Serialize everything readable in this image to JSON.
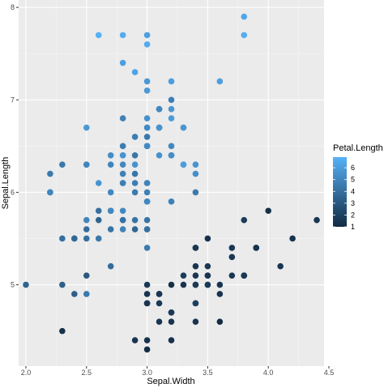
{
  "chart_data": {
    "type": "scatter",
    "title": "",
    "xlabel": "Sepal.Width",
    "ylabel": "Sepal.Length",
    "xlim": [
      1.94,
      4.46
    ],
    "ylim": [
      4.12,
      8.08
    ],
    "xticks": [
      2.0,
      2.5,
      3.0,
      3.5,
      4.0,
      4.5
    ],
    "xtick_labels": [
      "2.0",
      "2.5",
      "3.0",
      "3.5",
      "4.0",
      "4.5"
    ],
    "yticks": [
      5,
      6,
      7,
      8
    ],
    "ytick_labels": [
      "5",
      "6",
      "7",
      "8"
    ],
    "grid": true,
    "legend": {
      "title": "Petal.Length",
      "placement": "right",
      "breaks": [
        6,
        5,
        4,
        3,
        2,
        1
      ],
      "labels": [
        "6",
        "5",
        "4",
        "3",
        "2",
        "1"
      ],
      "range": [
        1,
        6.9
      ]
    },
    "color_scale": {
      "low": "#132B43",
      "high": "#56B1F7"
    },
    "points": [
      {
        "x": 3.5,
        "y": 5.1,
        "c": 1.4
      },
      {
        "x": 3.0,
        "y": 4.9,
        "c": 1.4
      },
      {
        "x": 3.2,
        "y": 4.7,
        "c": 1.3
      },
      {
        "x": 3.1,
        "y": 4.6,
        "c": 1.5
      },
      {
        "x": 3.6,
        "y": 5.0,
        "c": 1.4
      },
      {
        "x": 3.9,
        "y": 5.4,
        "c": 1.7
      },
      {
        "x": 3.4,
        "y": 4.6,
        "c": 1.4
      },
      {
        "x": 3.4,
        "y": 5.0,
        "c": 1.5
      },
      {
        "x": 2.9,
        "y": 4.4,
        "c": 1.4
      },
      {
        "x": 3.1,
        "y": 4.9,
        "c": 1.5
      },
      {
        "x": 3.7,
        "y": 5.4,
        "c": 1.5
      },
      {
        "x": 3.4,
        "y": 4.8,
        "c": 1.6
      },
      {
        "x": 3.0,
        "y": 4.8,
        "c": 1.4
      },
      {
        "x": 3.0,
        "y": 4.3,
        "c": 1.1
      },
      {
        "x": 4.0,
        "y": 5.8,
        "c": 1.2
      },
      {
        "x": 4.4,
        "y": 5.7,
        "c": 1.5
      },
      {
        "x": 3.9,
        "y": 5.4,
        "c": 1.3
      },
      {
        "x": 3.5,
        "y": 5.1,
        "c": 1.4
      },
      {
        "x": 3.8,
        "y": 5.7,
        "c": 1.7
      },
      {
        "x": 3.8,
        "y": 5.1,
        "c": 1.5
      },
      {
        "x": 3.4,
        "y": 5.4,
        "c": 1.7
      },
      {
        "x": 3.7,
        "y": 5.1,
        "c": 1.5
      },
      {
        "x": 3.6,
        "y": 4.6,
        "c": 1.0
      },
      {
        "x": 3.3,
        "y": 5.1,
        "c": 1.7
      },
      {
        "x": 3.4,
        "y": 4.8,
        "c": 1.9
      },
      {
        "x": 3.0,
        "y": 5.0,
        "c": 1.6
      },
      {
        "x": 3.4,
        "y": 5.0,
        "c": 1.6
      },
      {
        "x": 3.5,
        "y": 5.2,
        "c": 1.5
      },
      {
        "x": 3.4,
        "y": 5.2,
        "c": 1.4
      },
      {
        "x": 3.2,
        "y": 4.7,
        "c": 1.6
      },
      {
        "x": 3.1,
        "y": 4.8,
        "c": 1.6
      },
      {
        "x": 3.4,
        "y": 5.4,
        "c": 1.5
      },
      {
        "x": 4.1,
        "y": 5.2,
        "c": 1.5
      },
      {
        "x": 4.2,
        "y": 5.5,
        "c": 1.4
      },
      {
        "x": 3.1,
        "y": 4.9,
        "c": 1.5
      },
      {
        "x": 3.2,
        "y": 5.0,
        "c": 1.2
      },
      {
        "x": 3.5,
        "y": 5.5,
        "c": 1.3
      },
      {
        "x": 3.6,
        "y": 4.9,
        "c": 1.4
      },
      {
        "x": 3.0,
        "y": 4.4,
        "c": 1.3
      },
      {
        "x": 3.4,
        "y": 5.1,
        "c": 1.5
      },
      {
        "x": 3.5,
        "y": 5.0,
        "c": 1.3
      },
      {
        "x": 2.3,
        "y": 4.5,
        "c": 1.3
      },
      {
        "x": 3.2,
        "y": 4.4,
        "c": 1.3
      },
      {
        "x": 3.5,
        "y": 5.0,
        "c": 1.6
      },
      {
        "x": 3.8,
        "y": 5.1,
        "c": 1.9
      },
      {
        "x": 3.0,
        "y": 4.8,
        "c": 1.4
      },
      {
        "x": 3.8,
        "y": 5.1,
        "c": 1.6
      },
      {
        "x": 3.2,
        "y": 4.6,
        "c": 1.4
      },
      {
        "x": 3.7,
        "y": 5.3,
        "c": 1.5
      },
      {
        "x": 3.3,
        "y": 5.0,
        "c": 1.4
      },
      {
        "x": 3.2,
        "y": 7.0,
        "c": 4.7
      },
      {
        "x": 3.2,
        "y": 6.4,
        "c": 4.5
      },
      {
        "x": 3.1,
        "y": 6.9,
        "c": 4.9
      },
      {
        "x": 2.3,
        "y": 5.5,
        "c": 4.0
      },
      {
        "x": 2.8,
        "y": 6.5,
        "c": 4.6
      },
      {
        "x": 2.8,
        "y": 5.7,
        "c": 4.5
      },
      {
        "x": 3.3,
        "y": 6.3,
        "c": 4.7
      },
      {
        "x": 2.4,
        "y": 4.9,
        "c": 3.3
      },
      {
        "x": 2.9,
        "y": 6.6,
        "c": 4.6
      },
      {
        "x": 2.7,
        "y": 5.2,
        "c": 3.9
      },
      {
        "x": 2.0,
        "y": 5.0,
        "c": 3.5
      },
      {
        "x": 3.0,
        "y": 5.9,
        "c": 4.2
      },
      {
        "x": 2.2,
        "y": 6.0,
        "c": 4.0
      },
      {
        "x": 2.9,
        "y": 6.1,
        "c": 4.7
      },
      {
        "x": 2.9,
        "y": 5.6,
        "c": 3.6
      },
      {
        "x": 3.1,
        "y": 6.7,
        "c": 4.4
      },
      {
        "x": 3.0,
        "y": 5.6,
        "c": 4.5
      },
      {
        "x": 2.7,
        "y": 5.8,
        "c": 4.1
      },
      {
        "x": 2.2,
        "y": 6.2,
        "c": 4.5
      },
      {
        "x": 2.5,
        "y": 5.6,
        "c": 3.9
      },
      {
        "x": 3.2,
        "y": 5.9,
        "c": 4.8
      },
      {
        "x": 2.8,
        "y": 6.1,
        "c": 4.0
      },
      {
        "x": 2.5,
        "y": 6.3,
        "c": 4.9
      },
      {
        "x": 2.8,
        "y": 6.1,
        "c": 4.7
      },
      {
        "x": 2.9,
        "y": 6.4,
        "c": 4.3
      },
      {
        "x": 3.0,
        "y": 6.6,
        "c": 4.4
      },
      {
        "x": 2.8,
        "y": 6.8,
        "c": 4.8
      },
      {
        "x": 3.0,
        "y": 6.7,
        "c": 5.0
      },
      {
        "x": 2.9,
        "y": 6.0,
        "c": 4.5
      },
      {
        "x": 2.6,
        "y": 5.7,
        "c": 3.5
      },
      {
        "x": 2.4,
        "y": 5.5,
        "c": 3.8
      },
      {
        "x": 2.4,
        "y": 5.5,
        "c": 3.7
      },
      {
        "x": 2.7,
        "y": 5.8,
        "c": 3.9
      },
      {
        "x": 2.7,
        "y": 6.0,
        "c": 5.1
      },
      {
        "x": 3.0,
        "y": 5.4,
        "c": 4.5
      },
      {
        "x": 3.4,
        "y": 6.0,
        "c": 4.5
      },
      {
        "x": 3.1,
        "y": 6.7,
        "c": 4.7
      },
      {
        "x": 2.3,
        "y": 6.3,
        "c": 4.4
      },
      {
        "x": 3.0,
        "y": 5.6,
        "c": 4.1
      },
      {
        "x": 2.5,
        "y": 5.5,
        "c": 4.0
      },
      {
        "x": 2.6,
        "y": 5.5,
        "c": 4.4
      },
      {
        "x": 3.0,
        "y": 6.1,
        "c": 4.6
      },
      {
        "x": 2.6,
        "y": 5.8,
        "c": 4.0
      },
      {
        "x": 2.3,
        "y": 5.0,
        "c": 3.3
      },
      {
        "x": 2.7,
        "y": 5.6,
        "c": 4.2
      },
      {
        "x": 3.0,
        "y": 5.7,
        "c": 4.2
      },
      {
        "x": 2.9,
        "y": 5.7,
        "c": 4.2
      },
      {
        "x": 2.9,
        "y": 6.2,
        "c": 4.3
      },
      {
        "x": 2.5,
        "y": 5.1,
        "c": 3.0
      },
      {
        "x": 2.8,
        "y": 5.7,
        "c": 4.1
      },
      {
        "x": 3.3,
        "y": 6.3,
        "c": 6.0
      },
      {
        "x": 2.7,
        "y": 5.8,
        "c": 5.1
      },
      {
        "x": 3.0,
        "y": 7.1,
        "c": 5.9
      },
      {
        "x": 2.9,
        "y": 6.3,
        "c": 5.6
      },
      {
        "x": 3.0,
        "y": 6.5,
        "c": 5.8
      },
      {
        "x": 3.0,
        "y": 7.6,
        "c": 6.6
      },
      {
        "x": 2.5,
        "y": 4.9,
        "c": 4.5
      },
      {
        "x": 2.9,
        "y": 7.3,
        "c": 6.3
      },
      {
        "x": 2.5,
        "y": 6.7,
        "c": 5.8
      },
      {
        "x": 3.6,
        "y": 7.2,
        "c": 6.1
      },
      {
        "x": 3.2,
        "y": 6.5,
        "c": 5.1
      },
      {
        "x": 2.7,
        "y": 6.4,
        "c": 5.3
      },
      {
        "x": 3.0,
        "y": 6.8,
        "c": 5.5
      },
      {
        "x": 2.5,
        "y": 5.7,
        "c": 5.0
      },
      {
        "x": 2.8,
        "y": 5.8,
        "c": 5.1
      },
      {
        "x": 3.2,
        "y": 6.4,
        "c": 5.3
      },
      {
        "x": 3.0,
        "y": 6.5,
        "c": 5.5
      },
      {
        "x": 3.8,
        "y": 7.7,
        "c": 6.7
      },
      {
        "x": 2.6,
        "y": 7.7,
        "c": 6.9
      },
      {
        "x": 2.2,
        "y": 6.0,
        "c": 5.0
      },
      {
        "x": 3.2,
        "y": 6.9,
        "c": 5.7
      },
      {
        "x": 2.8,
        "y": 5.6,
        "c": 4.9
      },
      {
        "x": 2.8,
        "y": 7.7,
        "c": 6.7
      },
      {
        "x": 2.7,
        "y": 6.3,
        "c": 4.9
      },
      {
        "x": 3.3,
        "y": 6.7,
        "c": 5.7
      },
      {
        "x": 3.2,
        "y": 7.2,
        "c": 6.0
      },
      {
        "x": 2.8,
        "y": 6.2,
        "c": 4.8
      },
      {
        "x": 3.0,
        "y": 6.1,
        "c": 4.9
      },
      {
        "x": 2.8,
        "y": 6.4,
        "c": 5.6
      },
      {
        "x": 3.0,
        "y": 7.2,
        "c": 5.8
      },
      {
        "x": 2.8,
        "y": 7.4,
        "c": 6.1
      },
      {
        "x": 3.8,
        "y": 7.9,
        "c": 6.4
      },
      {
        "x": 2.8,
        "y": 6.4,
        "c": 5.6
      },
      {
        "x": 2.8,
        "y": 6.3,
        "c": 5.1
      },
      {
        "x": 2.6,
        "y": 6.1,
        "c": 5.6
      },
      {
        "x": 3.0,
        "y": 7.7,
        "c": 6.1
      },
      {
        "x": 3.4,
        "y": 6.3,
        "c": 5.6
      },
      {
        "x": 3.1,
        "y": 6.4,
        "c": 5.5
      },
      {
        "x": 3.0,
        "y": 6.0,
        "c": 4.8
      },
      {
        "x": 3.1,
        "y": 6.9,
        "c": 5.4
      },
      {
        "x": 3.1,
        "y": 6.7,
        "c": 5.6
      },
      {
        "x": 3.1,
        "y": 6.9,
        "c": 5.1
      },
      {
        "x": 2.7,
        "y": 5.8,
        "c": 5.1
      },
      {
        "x": 3.2,
        "y": 6.8,
        "c": 5.9
      },
      {
        "x": 3.3,
        "y": 6.7,
        "c": 5.7
      },
      {
        "x": 3.0,
        "y": 6.7,
        "c": 5.2
      },
      {
        "x": 2.5,
        "y": 6.3,
        "c": 5.0
      },
      {
        "x": 3.0,
        "y": 6.5,
        "c": 5.2
      },
      {
        "x": 3.4,
        "y": 6.2,
        "c": 5.4
      },
      {
        "x": 3.0,
        "y": 5.9,
        "c": 5.1
      }
    ]
  },
  "colors": {
    "panel_background": "#EBEBEB",
    "grid_major": "#FFFFFF",
    "grid_minor": "#F5F5F5"
  }
}
